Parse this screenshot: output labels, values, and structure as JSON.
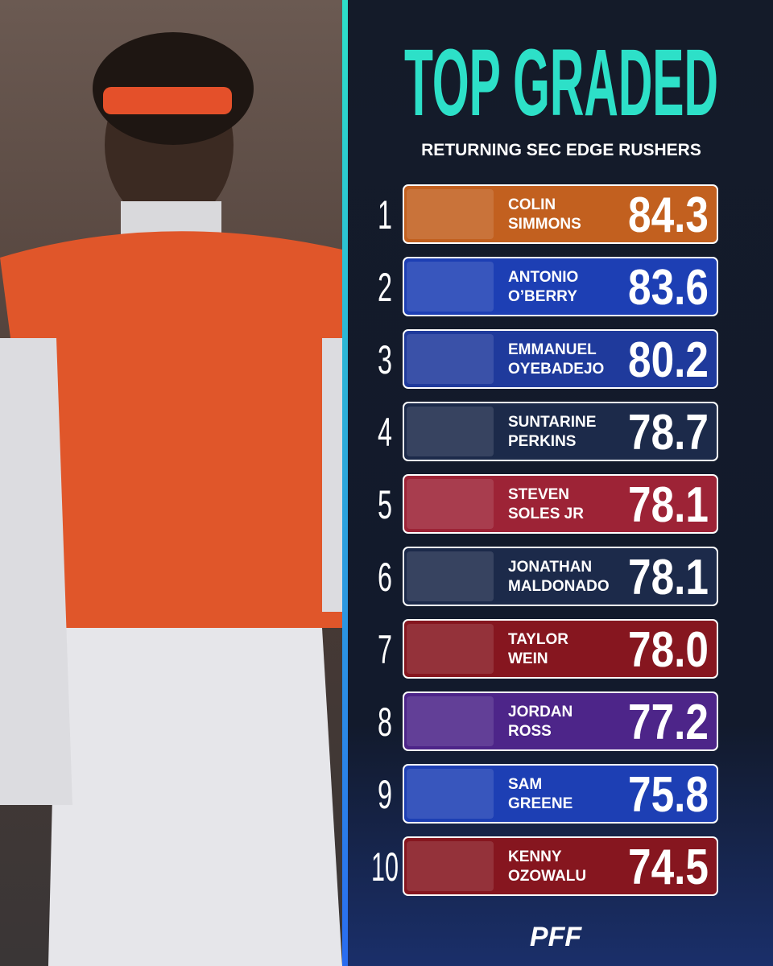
{
  "title": "TOP GRADED",
  "subtitle": "RETURNING SEC EDGE RUSHERS",
  "rows": [
    {
      "rank": "1",
      "first": "COLIN",
      "last": "SIMMONS",
      "grade": "84.3",
      "color": "#c2601f"
    },
    {
      "rank": "2",
      "first": "ANTONIO",
      "last": "O’BERRY",
      "grade": "83.6",
      "color": "#1d3fb4"
    },
    {
      "rank": "3",
      "first": "EMMANUEL",
      "last": "OYEBADEJO",
      "grade": "80.2",
      "color": "#1f3a9c"
    },
    {
      "rank": "4",
      "first": "SUNTARINE",
      "last": "PERKINS",
      "grade": "78.7",
      "color": "#1c2a4a"
    },
    {
      "rank": "5",
      "first": "STEVEN",
      "last": "SOLES JR",
      "grade": "78.1",
      "color": "#9d2336"
    },
    {
      "rank": "6",
      "first": "JONATHAN",
      "last": "MALDONADO",
      "grade": "78.1",
      "color": "#1c2a4a"
    },
    {
      "rank": "7",
      "first": "TAYLOR",
      "last": "WEIN",
      "grade": "78.0",
      "color": "#86161f"
    },
    {
      "rank": "8",
      "first": "JORDAN",
      "last": "ROSS",
      "grade": "77.2",
      "color": "#4d2589"
    },
    {
      "rank": "9",
      "first": "SAM",
      "last": "GREENE",
      "grade": "75.8",
      "color": "#1d3fb4"
    },
    {
      "rank": "10",
      "first": "KENNY",
      "last": "OZOWALU",
      "grade": "74.5",
      "color": "#86161f"
    }
  ],
  "brand": "PFF"
}
